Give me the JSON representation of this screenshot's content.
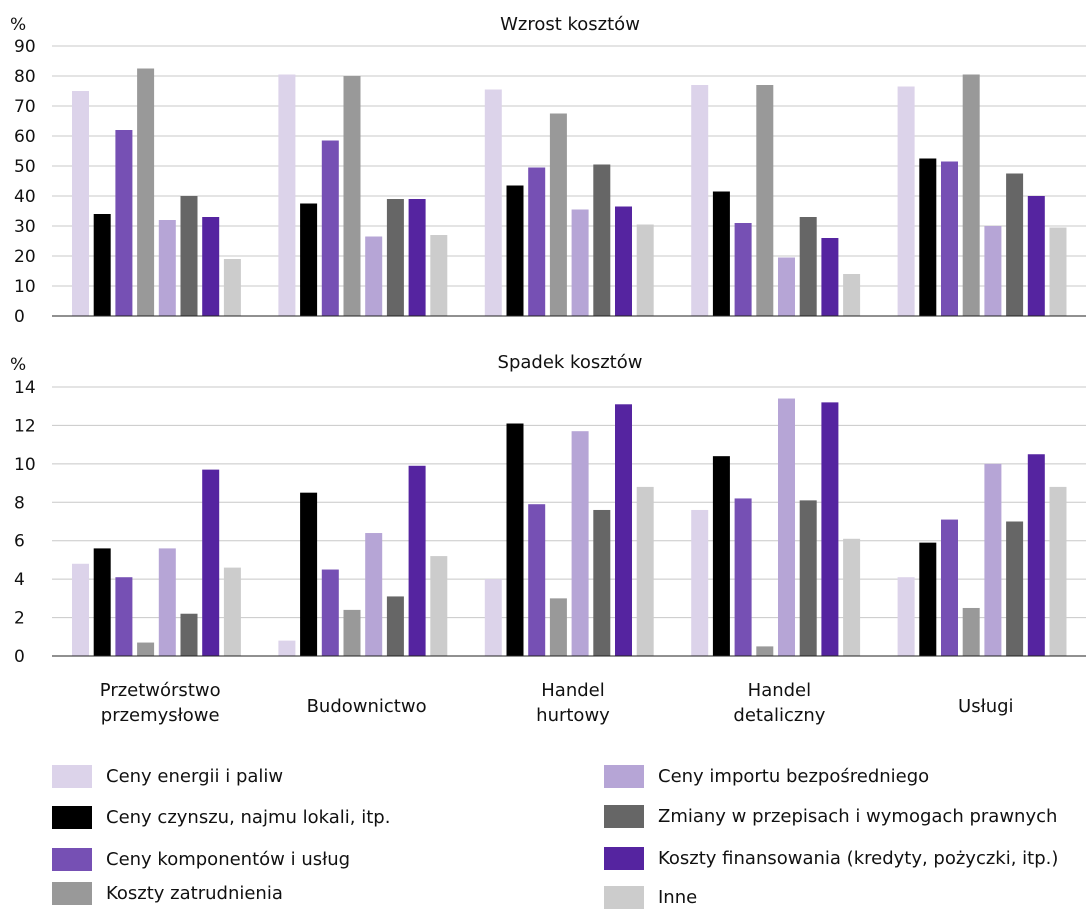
{
  "chart_data": [
    {
      "type": "bar",
      "title": "Wzrost kosztów",
      "ylabel": "%",
      "xlabel": "",
      "ylim": [
        0,
        90
      ],
      "yticks": [
        0,
        10,
        20,
        30,
        40,
        50,
        60,
        70,
        80,
        90
      ],
      "grid": true,
      "categories": [
        "Przetwórstwo przemysłowe",
        "Budownictwo",
        "Handel hurtowy",
        "Handel detaliczny",
        "Usługi"
      ],
      "series": [
        {
          "name": "Ceny energii i paliw",
          "values": [
            75,
            80.5,
            75.5,
            77,
            76.5
          ]
        },
        {
          "name": "Ceny czynszu, najmu lokali, itp.",
          "values": [
            34,
            37.5,
            43.5,
            41.5,
            52.5
          ]
        },
        {
          "name": "Ceny komponentów i usług",
          "values": [
            62,
            58.5,
            49.5,
            31,
            51.5
          ]
        },
        {
          "name": "Koszty zatrudnienia",
          "values": [
            82.5,
            80,
            67.5,
            77,
            80.5
          ]
        },
        {
          "name": "Ceny importu bezpośredniego",
          "values": [
            32,
            26.5,
            35.5,
            19.5,
            30
          ]
        },
        {
          "name": "Zmiany w przepisach i wymogach prawnych",
          "values": [
            40,
            39,
            50.5,
            33,
            47.5
          ]
        },
        {
          "name": "Koszty finansowania (kredyty, pożyczki, itp.)",
          "values": [
            33,
            39,
            36.5,
            26,
            40
          ]
        },
        {
          "name": "Inne",
          "values": [
            19,
            27,
            30.5,
            14,
            29.5
          ]
        }
      ]
    },
    {
      "type": "bar",
      "title": "Spadek kosztów",
      "ylabel": "%",
      "xlabel": "",
      "ylim": [
        0,
        14
      ],
      "yticks": [
        0,
        2,
        4,
        6,
        8,
        10,
        12,
        14
      ],
      "grid": true,
      "categories": [
        "Przetwórstwo przemysłowe",
        "Budownictwo",
        "Handel hurtowy",
        "Handel detaliczny",
        "Usługi"
      ],
      "series": [
        {
          "name": "Ceny energii i paliw",
          "values": [
            4.8,
            0.8,
            4.0,
            7.6,
            4.1
          ]
        },
        {
          "name": "Ceny czynszu, najmu lokali, itp.",
          "values": [
            5.6,
            8.5,
            12.1,
            10.4,
            5.9
          ]
        },
        {
          "name": "Ceny komponentów i usług",
          "values": [
            4.1,
            4.5,
            7.9,
            8.2,
            7.1
          ]
        },
        {
          "name": "Koszty zatrudnienia",
          "values": [
            0.7,
            2.4,
            3.0,
            0.5,
            2.5
          ]
        },
        {
          "name": "Ceny importu bezpośredniego",
          "values": [
            5.6,
            6.4,
            11.7,
            13.4,
            10.0
          ]
        },
        {
          "name": "Zmiany w przepisach i wymogach prawnych",
          "values": [
            2.2,
            3.1,
            7.6,
            8.1,
            7.0
          ]
        },
        {
          "name": "Koszty finansowania (kredyty, pożyczki, itp.)",
          "values": [
            9.7,
            9.9,
            13.1,
            13.2,
            10.5
          ]
        },
        {
          "name": "Inne",
          "values": [
            4.6,
            5.2,
            8.8,
            6.1,
            8.8
          ]
        }
      ]
    }
  ],
  "category_label_lines": [
    [
      "Przetwórstwo",
      "przemysłowe"
    ],
    [
      "Budownictwo"
    ],
    [
      "Handel",
      "hurtowy"
    ],
    [
      "Handel",
      "detaliczny"
    ],
    [
      "Usługi"
    ]
  ],
  "colors": [
    "#dcd3ea",
    "#000000",
    "#7650b4",
    "#999999",
    "#b6a5d6",
    "#666666",
    "#5524a0",
    "#cccccc"
  ],
  "legend": [
    {
      "label": "Ceny energii i paliw",
      "color": "#dcd3ea"
    },
    {
      "label": "Ceny czynszu, najmu lokali, itp.",
      "color": "#000000"
    },
    {
      "label": "Ceny komponentów i usług",
      "color": "#7650b4"
    },
    {
      "label": "Koszty zatrudnienia",
      "color": "#999999"
    },
    {
      "label": "Ceny importu bezpośredniego",
      "color": "#b6a5d6"
    },
    {
      "label": "Zmiany w przepisach i wymogach prawnych",
      "color": "#666666"
    },
    {
      "label": "Koszty finansowania (kredyty, pożyczki, itp.)",
      "color": "#5524a0"
    },
    {
      "label": "Inne",
      "color": "#cccccc"
    }
  ]
}
